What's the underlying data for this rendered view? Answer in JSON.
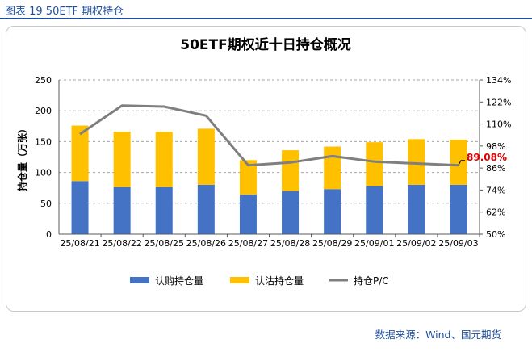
{
  "caption": "图表 19 50ETF 期权持仓",
  "source": "数据来源：Wind、国元期货",
  "chart_data": {
    "type": "bar",
    "title": "50ETF期权近十日持仓概况",
    "ylabel": "持仓量（万张）",
    "ylim": [
      0,
      250
    ],
    "y_ticks": [
      "0",
      "50",
      "100",
      "150",
      "200",
      "250"
    ],
    "y2lim": [
      50,
      134
    ],
    "y2_ticks": [
      "50%",
      "62%",
      "74%",
      "86%",
      "98%",
      "110%",
      "122%",
      "134%"
    ],
    "categories": [
      "25/08/21",
      "25/08/22",
      "25/08/25",
      "25/08/26",
      "25/08/27",
      "25/08/28",
      "25/08/29",
      "25/09/01",
      "25/09/02",
      "25/09/03"
    ],
    "stacked": true,
    "series": [
      {
        "name": "认购持仓量",
        "kind": "bar",
        "color": "#4472c4",
        "values": [
          86,
          76,
          76,
          80,
          64,
          70,
          73,
          78,
          80,
          80
        ]
      },
      {
        "name": "认沽持仓量",
        "kind": "bar",
        "color": "#ffc000",
        "values": [
          90,
          90,
          90,
          91,
          56,
          66,
          69,
          71,
          74,
          73
        ]
      },
      {
        "name": "持仓P/C",
        "kind": "line",
        "axis": "right",
        "color": "#7f7f7f",
        "values": [
          104.5,
          120,
          119.5,
          114.5,
          87.5,
          89,
          92.5,
          89.5,
          88.5,
          87.5
        ]
      }
    ],
    "annotation": {
      "text": "89.08%",
      "color": "#e00000"
    },
    "grid": true,
    "legend_position": "bottom"
  }
}
